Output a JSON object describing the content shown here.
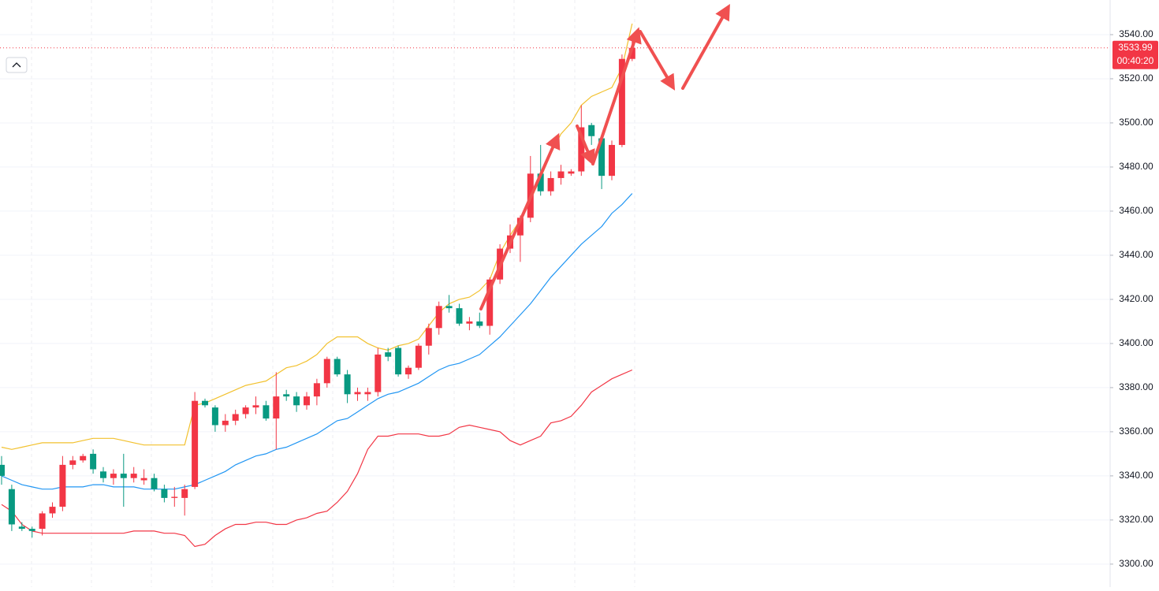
{
  "chart_data": {
    "type": "candlestick",
    "up_color": "#f23645",
    "down_color": "#089981",
    "open": [
      3345,
      3334,
      3317,
      3316,
      3316,
      3323,
      3326,
      3345,
      3347,
      3350,
      3342,
      3339,
      3341,
      3339,
      3338,
      3339,
      3334,
      3330,
      3330,
      3335,
      3374,
      3371,
      3363,
      3365,
      3368,
      3371,
      3372,
      3366,
      3377,
      3376,
      3372,
      3376,
      3382,
      3393,
      3386,
      3377,
      3377,
      3378,
      3396,
      3398,
      3386,
      3389,
      3399,
      3407,
      3417,
      3416,
      3409,
      3410,
      3408,
      3429,
      3443,
      3449,
      3457,
      3477,
      3469,
      3475,
      3477,
      3478,
      3499,
      3493,
      3476,
      3490,
      3529
    ],
    "high": [
      3349,
      3336,
      3319,
      3317,
      3324,
      3328,
      3349,
      3349,
      3350,
      3352,
      3344,
      3343,
      3350,
      3344,
      3343,
      3341,
      3336,
      3335,
      3336,
      3378,
      3375,
      3372,
      3368,
      3370,
      3372,
      3376,
      3374,
      3387,
      3379,
      3378,
      3378,
      3384,
      3394,
      3394,
      3388,
      3380,
      3380,
      3398,
      3398,
      3399,
      3390,
      3400,
      3409,
      3419,
      3422,
      3418,
      3412,
      3414,
      3430,
      3445,
      3454,
      3458,
      3485,
      3490,
      3478,
      3481,
      3479,
      3508,
      3500,
      3494,
      3492,
      3531,
      3540
    ],
    "low": [
      3336,
      3315,
      3315,
      3312,
      3313,
      3321,
      3324,
      3343,
      3346,
      3341,
      3337,
      3336,
      3326,
      3337,
      3336,
      3333,
      3328,
      3326,
      3322,
      3334,
      3371,
      3360,
      3360,
      3363,
      3366,
      3368,
      3365,
      3352,
      3374,
      3369,
      3370,
      3372,
      3380,
      3385,
      3373,
      3374,
      3374,
      3376,
      3392,
      3385,
      3384,
      3388,
      3395,
      3404,
      3414,
      3408,
      3406,
      3407,
      3404,
      3427,
      3441,
      3437,
      3455,
      3467,
      3467,
      3472,
      3476,
      3476,
      3490,
      3470,
      3474,
      3489,
      3528
    ],
    "close": [
      3340,
      3318,
      3316,
      3315,
      3323,
      3326,
      3345,
      3347,
      3349,
      3343,
      3339,
      3341,
      3339,
      3341,
      3339,
      3334,
      3330,
      3330.5,
      3334,
      3374,
      3372,
      3363,
      3365,
      3368,
      3371,
      3372,
      3366,
      3376,
      3376,
      3372,
      3376,
      3382,
      3393,
      3386,
      3377,
      3378,
      3378,
      3395,
      3394,
      3386,
      3389,
      3399,
      3407,
      3417,
      3416,
      3409,
      3410,
      3408,
      3429,
      3443,
      3449,
      3457,
      3477,
      3469,
      3475,
      3478,
      3478,
      3498,
      3494,
      3476,
      3490,
      3529,
      3533.99
    ],
    "bands": [
      {
        "color": "#f2c12e",
        "values": [
          3353,
          3352,
          3353,
          3354,
          3355,
          3355,
          3355,
          3355,
          3356,
          3357,
          3357,
          3357,
          3356,
          3355,
          3354,
          3354,
          3354,
          3354,
          3354,
          3372,
          3373,
          3375,
          3377,
          3379,
          3381,
          3382,
          3383,
          3386,
          3389,
          3390,
          3392,
          3395,
          3400,
          3403,
          3403,
          3403,
          3400,
          3398,
          3397,
          3399,
          3400,
          3402,
          3408,
          3414,
          3418,
          3420,
          3421,
          3424,
          3429,
          3441,
          3449,
          3456,
          3465,
          3475,
          3486,
          3495,
          3500,
          3508,
          3512,
          3514,
          3516,
          3525,
          3545
        ]
      },
      {
        "color": "#2196f3",
        "values": [
          3340,
          3338,
          3336,
          3335,
          3334,
          3334,
          3335,
          3335,
          3335,
          3336,
          3336,
          3335,
          3335,
          3335,
          3334,
          3334,
          3334,
          3334,
          3335,
          3336,
          3338,
          3340,
          3342,
          3345,
          3347,
          3349,
          3350,
          3352,
          3353,
          3355,
          3357,
          3359,
          3362,
          3365,
          3366,
          3369,
          3372,
          3375,
          3377,
          3378,
          3380,
          3382,
          3385,
          3388,
          3390,
          3391,
          3393,
          3395,
          3399,
          3403,
          3408,
          3413,
          3418,
          3424,
          3430,
          3435,
          3440,
          3445,
          3449,
          3453,
          3459,
          3463,
          3468
        ]
      },
      {
        "color": "#f23645",
        "values": [
          3327,
          3324,
          3318,
          3315,
          3314,
          3314,
          3314,
          3314,
          3314,
          3314,
          3314,
          3314,
          3314,
          3315,
          3315,
          3315,
          3314,
          3314,
          3313,
          3308,
          3309,
          3313,
          3316,
          3318,
          3318,
          3319,
          3319,
          3318,
          3318,
          3320,
          3321,
          3323,
          3324,
          3328,
          3333,
          3341,
          3352,
          3358,
          3358,
          3359,
          3359,
          3359,
          3358,
          3358,
          3359,
          3362,
          3363,
          3362,
          3361,
          3360,
          3356,
          3354,
          3356,
          3358,
          3364,
          3365,
          3367,
          3372,
          3378,
          3381,
          3384,
          3386,
          3388
        ]
      }
    ],
    "ylim": [
      3289.6,
      3555.7
    ],
    "yticks": [
      {
        "value": 3300,
        "label": "3300.00"
      },
      {
        "value": 3320,
        "label": "3320.00"
      },
      {
        "value": 3340,
        "label": "3340.00"
      },
      {
        "value": 3360,
        "label": "3360.00"
      },
      {
        "value": 3380,
        "label": "3380.00"
      },
      {
        "value": 3400,
        "label": "3400.00"
      },
      {
        "value": 3420,
        "label": "3420.00"
      },
      {
        "value": 3440,
        "label": "3440.00"
      },
      {
        "value": 3460,
        "label": "3460.00"
      },
      {
        "value": 3480,
        "label": "3480.00"
      },
      {
        "value": 3500,
        "label": "3500.00"
      },
      {
        "value": 3520,
        "label": "3520.00"
      },
      {
        "value": 3540,
        "label": "3540.00"
      }
    ],
    "grid": true,
    "last_price": 3533.99,
    "countdown": "00:40:20"
  }
}
